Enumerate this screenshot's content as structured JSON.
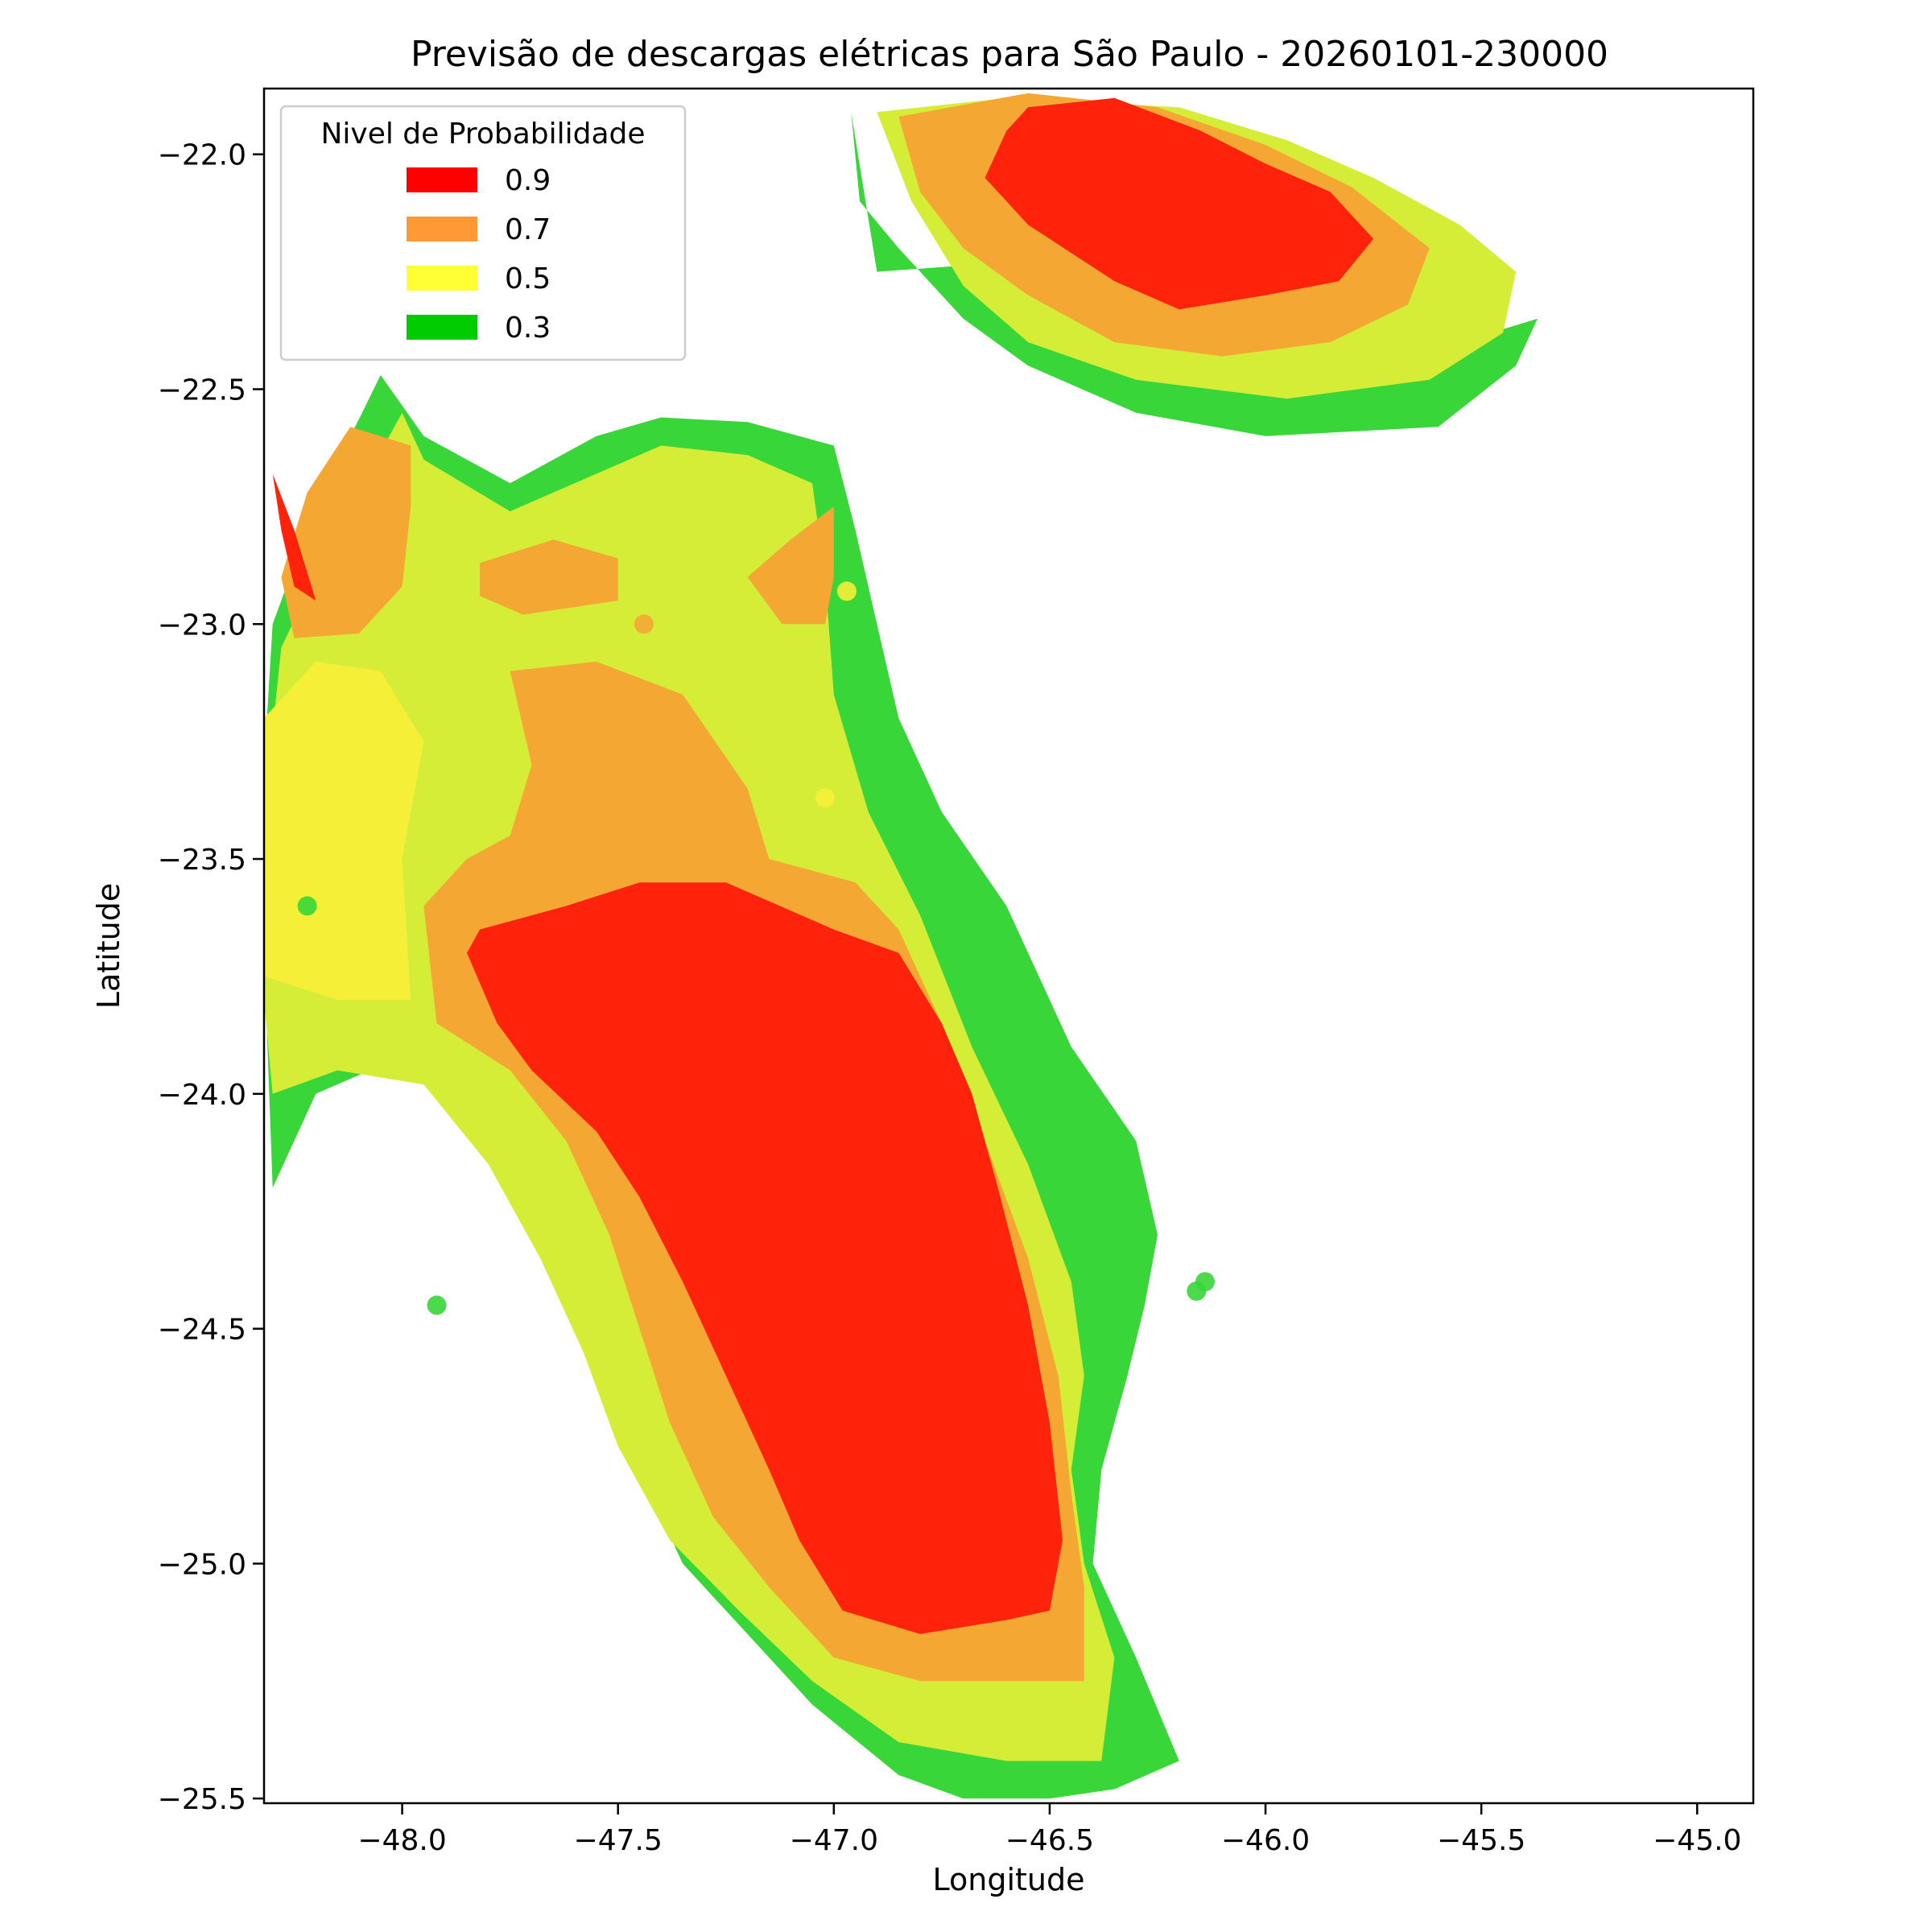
{
  "chart_data": {
    "type": "contourf-map",
    "title": "Previsão de descargas elétricas para São Paulo - 20260101-230000",
    "xlabel": "Longitude",
    "ylabel": "Latitude",
    "xlim": [
      -48.32,
      -44.87
    ],
    "ylim": [
      -25.51,
      -21.86
    ],
    "xticks": [
      -48.0,
      -47.5,
      -47.0,
      -46.5,
      -46.0,
      -45.5,
      -45.0
    ],
    "xtick_labels": [
      "−48.0",
      "−47.5",
      "−47.0",
      "−46.5",
      "−46.0",
      "−45.5",
      "−45.0"
    ],
    "yticks": [
      -22.0,
      -22.5,
      -23.0,
      -23.5,
      -24.0,
      -24.5,
      -25.0,
      -25.5
    ],
    "ytick_labels": [
      "−22.0",
      "−22.5",
      "−23.0",
      "−23.5",
      "−24.0",
      "−24.5",
      "−25.0",
      "−25.5"
    ],
    "grid": false,
    "legend": {
      "title": "Nivel de Probabilidade",
      "placement": "upper left",
      "entries": [
        {
          "label": "0.9",
          "color": "#ff0000"
        },
        {
          "label": "0.7",
          "color": "#ff9933"
        },
        {
          "label": "0.5",
          "color": "#ffff33"
        },
        {
          "label": "0.3",
          "color": "#00cc00"
        }
      ]
    },
    "fill_colors": {
      "0.3": "#39d639",
      "0.4": "#d5ed37",
      "0.5": "#f5ef37",
      "0.7": "#f5a733",
      "0.9": "#ff230c"
    },
    "regions": [
      {
        "level": "0.3",
        "coords": [
          [
            -45.95,
            -22.2
          ],
          [
            -46.45,
            -22.22
          ],
          [
            -46.9,
            -22.25
          ],
          [
            -46.96,
            -21.91
          ],
          [
            -46.94,
            -22.1
          ],
          [
            -46.85,
            -22.2
          ],
          [
            -46.7,
            -22.35
          ],
          [
            -46.55,
            -22.45
          ],
          [
            -46.3,
            -22.55
          ],
          [
            -46.0,
            -22.6
          ],
          [
            -45.6,
            -22.58
          ],
          [
            -45.42,
            -22.45
          ],
          [
            -45.37,
            -22.35
          ],
          [
            -45.55,
            -22.4
          ],
          [
            -45.8,
            -22.32
          ]
        ]
      },
      {
        "level": "0.4",
        "coords": [
          [
            -46.9,
            -21.91
          ],
          [
            -46.6,
            -21.88
          ],
          [
            -46.2,
            -21.9
          ],
          [
            -45.95,
            -21.97
          ],
          [
            -45.75,
            -22.05
          ],
          [
            -45.55,
            -22.15
          ],
          [
            -45.42,
            -22.25
          ],
          [
            -45.45,
            -22.38
          ],
          [
            -45.62,
            -22.48
          ],
          [
            -45.95,
            -22.52
          ],
          [
            -46.3,
            -22.48
          ],
          [
            -46.55,
            -22.4
          ],
          [
            -46.7,
            -22.28
          ],
          [
            -46.82,
            -22.1
          ]
        ]
      },
      {
        "level": "0.7",
        "coords": [
          [
            -46.85,
            -21.92
          ],
          [
            -46.55,
            -21.87
          ],
          [
            -46.25,
            -21.9
          ],
          [
            -46.0,
            -21.98
          ],
          [
            -45.8,
            -22.07
          ],
          [
            -45.62,
            -22.2
          ],
          [
            -45.67,
            -22.32
          ],
          [
            -45.85,
            -22.4
          ],
          [
            -46.1,
            -22.43
          ],
          [
            -46.35,
            -22.4
          ],
          [
            -46.55,
            -22.3
          ],
          [
            -46.7,
            -22.2
          ],
          [
            -46.8,
            -22.08
          ]
        ]
      },
      {
        "level": "0.9",
        "coords": [
          [
            -46.55,
            -21.9
          ],
          [
            -46.35,
            -21.88
          ],
          [
            -46.15,
            -21.95
          ],
          [
            -46.0,
            -22.02
          ],
          [
            -45.85,
            -22.08
          ],
          [
            -45.75,
            -22.18
          ],
          [
            -45.83,
            -22.27
          ],
          [
            -46.0,
            -22.3
          ],
          [
            -46.2,
            -22.33
          ],
          [
            -46.35,
            -22.27
          ],
          [
            -46.55,
            -22.15
          ],
          [
            -46.65,
            -22.05
          ],
          [
            -46.6,
            -21.95
          ]
        ]
      },
      {
        "level": "0.3",
        "coords": [
          [
            -48.3,
            -24.2
          ],
          [
            -48.2,
            -24.0
          ],
          [
            -48.0,
            -23.92
          ],
          [
            -47.85,
            -24.0
          ],
          [
            -47.65,
            -24.2
          ],
          [
            -47.55,
            -24.4
          ],
          [
            -47.5,
            -24.6
          ],
          [
            -47.45,
            -24.8
          ],
          [
            -47.35,
            -25.0
          ],
          [
            -47.2,
            -25.15
          ],
          [
            -47.05,
            -25.3
          ],
          [
            -46.85,
            -25.45
          ],
          [
            -46.7,
            -25.5
          ],
          [
            -46.5,
            -25.5
          ],
          [
            -46.35,
            -25.48
          ],
          [
            -46.2,
            -25.42
          ],
          [
            -46.3,
            -25.2
          ],
          [
            -46.4,
            -25.0
          ],
          [
            -46.38,
            -24.8
          ],
          [
            -46.32,
            -24.6
          ],
          [
            -46.28,
            -24.45
          ],
          [
            -46.25,
            -24.3
          ],
          [
            -46.3,
            -24.1
          ],
          [
            -46.45,
            -23.9
          ],
          [
            -46.6,
            -23.6
          ],
          [
            -46.75,
            -23.4
          ],
          [
            -46.85,
            -23.2
          ],
          [
            -46.9,
            -23.0
          ],
          [
            -46.95,
            -22.8
          ],
          [
            -47.0,
            -22.62
          ],
          [
            -47.2,
            -22.57
          ],
          [
            -47.4,
            -22.56
          ],
          [
            -47.55,
            -22.6
          ],
          [
            -47.75,
            -22.7
          ],
          [
            -47.95,
            -22.6
          ],
          [
            -48.05,
            -22.47
          ],
          [
            -48.2,
            -22.75
          ],
          [
            -48.3,
            -23.0
          ],
          [
            -48.32,
            -23.3
          ],
          [
            -48.32,
            -23.7
          ]
        ]
      },
      {
        "level": "0.4",
        "coords": [
          [
            -48.3,
            -24.0
          ],
          [
            -48.15,
            -23.95
          ],
          [
            -47.95,
            -23.98
          ],
          [
            -47.8,
            -24.15
          ],
          [
            -47.68,
            -24.35
          ],
          [
            -47.58,
            -24.55
          ],
          [
            -47.5,
            -24.75
          ],
          [
            -47.38,
            -24.95
          ],
          [
            -47.22,
            -25.1
          ],
          [
            -47.05,
            -25.25
          ],
          [
            -46.85,
            -25.38
          ],
          [
            -46.6,
            -25.42
          ],
          [
            -46.38,
            -25.42
          ],
          [
            -46.35,
            -25.2
          ],
          [
            -46.42,
            -25.0
          ],
          [
            -46.45,
            -24.8
          ],
          [
            -46.42,
            -24.6
          ],
          [
            -46.45,
            -24.4
          ],
          [
            -46.55,
            -24.15
          ],
          [
            -46.68,
            -23.9
          ],
          [
            -46.8,
            -23.62
          ],
          [
            -46.92,
            -23.4
          ],
          [
            -47.0,
            -23.15
          ],
          [
            -47.02,
            -22.9
          ],
          [
            -47.05,
            -22.7
          ],
          [
            -47.2,
            -22.64
          ],
          [
            -47.4,
            -22.62
          ],
          [
            -47.55,
            -22.68
          ],
          [
            -47.75,
            -22.76
          ],
          [
            -47.95,
            -22.65
          ],
          [
            -48.0,
            -22.55
          ],
          [
            -48.15,
            -22.8
          ],
          [
            -48.28,
            -23.05
          ],
          [
            -48.32,
            -23.4
          ],
          [
            -48.32,
            -23.8
          ]
        ]
      },
      {
        "level": "0.5",
        "coords": [
          [
            -48.32,
            -23.2
          ],
          [
            -48.2,
            -23.08
          ],
          [
            -48.05,
            -23.1
          ],
          [
            -47.95,
            -23.25
          ],
          [
            -48.0,
            -23.5
          ],
          [
            -47.98,
            -23.8
          ],
          [
            -48.15,
            -23.8
          ],
          [
            -48.32,
            -23.75
          ]
        ]
      },
      {
        "level": "0.7",
        "coords": [
          [
            -48.25,
            -23.03
          ],
          [
            -48.1,
            -23.02
          ],
          [
            -48.0,
            -22.92
          ],
          [
            -47.98,
            -22.75
          ],
          [
            -47.98,
            -22.62
          ],
          [
            -48.12,
            -22.58
          ],
          [
            -48.22,
            -22.72
          ],
          [
            -48.28,
            -22.9
          ]
        ]
      },
      {
        "level": "0.7",
        "coords": [
          [
            -47.82,
            -22.87
          ],
          [
            -47.65,
            -22.82
          ],
          [
            -47.5,
            -22.86
          ],
          [
            -47.5,
            -22.95
          ],
          [
            -47.72,
            -22.98
          ],
          [
            -47.82,
            -22.94
          ]
        ]
      },
      {
        "level": "0.7",
        "coords": [
          [
            -47.0,
            -22.75
          ],
          [
            -47.1,
            -22.82
          ],
          [
            -47.2,
            -22.9
          ],
          [
            -47.12,
            -23.0
          ],
          [
            -47.02,
            -23.0
          ],
          [
            -47.0,
            -22.9
          ]
        ]
      },
      {
        "level": "0.7",
        "coords": [
          [
            -47.75,
            -23.1
          ],
          [
            -47.55,
            -23.08
          ],
          [
            -47.35,
            -23.15
          ],
          [
            -47.2,
            -23.35
          ],
          [
            -47.15,
            -23.5
          ],
          [
            -46.95,
            -23.55
          ],
          [
            -46.85,
            -23.65
          ],
          [
            -46.75,
            -23.85
          ],
          [
            -46.65,
            -24.1
          ],
          [
            -46.55,
            -24.35
          ],
          [
            -46.48,
            -24.6
          ],
          [
            -46.45,
            -24.85
          ],
          [
            -46.42,
            -25.05
          ],
          [
            -46.42,
            -25.25
          ],
          [
            -46.6,
            -25.25
          ],
          [
            -46.8,
            -25.25
          ],
          [
            -47.0,
            -25.2
          ],
          [
            -47.15,
            -25.05
          ],
          [
            -47.28,
            -24.9
          ],
          [
            -47.38,
            -24.7
          ],
          [
            -47.45,
            -24.5
          ],
          [
            -47.52,
            -24.3
          ],
          [
            -47.62,
            -24.1
          ],
          [
            -47.75,
            -23.95
          ],
          [
            -47.92,
            -23.85
          ],
          [
            -47.95,
            -23.6
          ],
          [
            -47.85,
            -23.5
          ],
          [
            -47.75,
            -23.45
          ],
          [
            -47.7,
            -23.3
          ]
        ]
      },
      {
        "level": "0.9",
        "coords": [
          [
            -48.3,
            -22.68
          ],
          [
            -48.25,
            -22.8
          ],
          [
            -48.2,
            -22.95
          ],
          [
            -48.25,
            -22.92
          ],
          [
            -48.28,
            -22.8
          ]
        ]
      },
      {
        "level": "0.9",
        "coords": [
          [
            -47.82,
            -23.65
          ],
          [
            -47.62,
            -23.6
          ],
          [
            -47.45,
            -23.55
          ],
          [
            -47.25,
            -23.55
          ],
          [
            -47.0,
            -23.65
          ],
          [
            -46.85,
            -23.7
          ],
          [
            -46.75,
            -23.85
          ],
          [
            -46.68,
            -24.0
          ],
          [
            -46.62,
            -24.2
          ],
          [
            -46.55,
            -24.45
          ],
          [
            -46.5,
            -24.7
          ],
          [
            -46.47,
            -24.95
          ],
          [
            -46.5,
            -25.1
          ],
          [
            -46.6,
            -25.12
          ],
          [
            -46.8,
            -25.15
          ],
          [
            -46.98,
            -25.1
          ],
          [
            -47.08,
            -24.95
          ],
          [
            -47.15,
            -24.8
          ],
          [
            -47.25,
            -24.6
          ],
          [
            -47.35,
            -24.4
          ],
          [
            -47.45,
            -24.22
          ],
          [
            -47.55,
            -24.08
          ],
          [
            -47.7,
            -23.95
          ],
          [
            -47.78,
            -23.85
          ],
          [
            -47.85,
            -23.7
          ]
        ]
      }
    ],
    "points": [
      {
        "lon": -48.22,
        "lat": -23.6,
        "level": "0.3"
      },
      {
        "lon": -47.92,
        "lat": -24.45,
        "level": "0.3"
      },
      {
        "lon": -46.16,
        "lat": -24.42,
        "level": "0.3"
      },
      {
        "lon": -46.14,
        "lat": -24.4,
        "level": "0.3"
      },
      {
        "lon": -47.44,
        "lat": -23.0,
        "level": "0.7"
      },
      {
        "lon": -47.6,
        "lat": -23.35,
        "level": "0.7"
      },
      {
        "lon": -46.97,
        "lat": -22.93,
        "level": "0.5"
      },
      {
        "lon": -47.02,
        "lat": -23.37,
        "level": "0.5"
      }
    ]
  }
}
